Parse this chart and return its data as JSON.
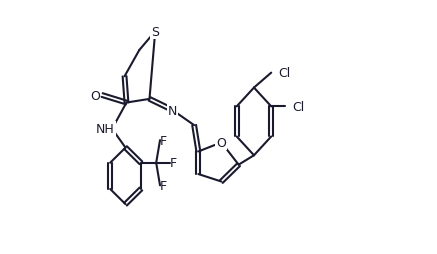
{
  "bg_color": "#ffffff",
  "line_color": "#1a1a2e",
  "line_width": 1.5,
  "font_size": 9,
  "xlim": [
    -0.05,
    1.42
  ],
  "ylim": [
    -0.28,
    1.05
  ]
}
